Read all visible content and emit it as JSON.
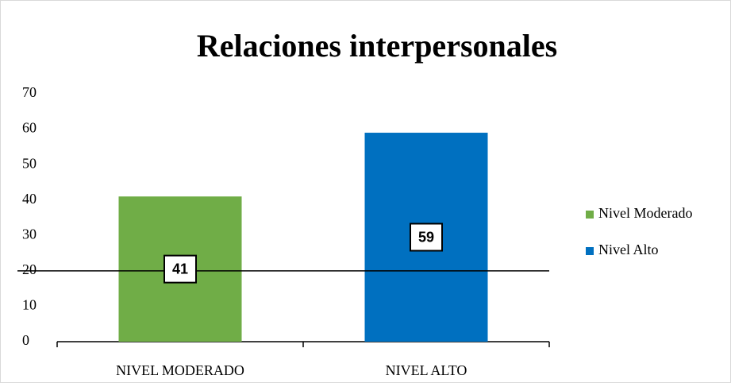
{
  "chart_data": {
    "type": "bar",
    "title": "Relaciones interpersonales",
    "categories": [
      "NIVEL MODERADO",
      "NIVEL ALTO"
    ],
    "values": [
      41,
      59
    ],
    "colors": [
      "#70ad47",
      "#0070c0"
    ],
    "legend": [
      "Nivel Moderado",
      "Nivel Alto"
    ],
    "ylim": [
      0,
      70
    ],
    "yticks": [
      0,
      10,
      20,
      30,
      40,
      50,
      60,
      70
    ]
  }
}
